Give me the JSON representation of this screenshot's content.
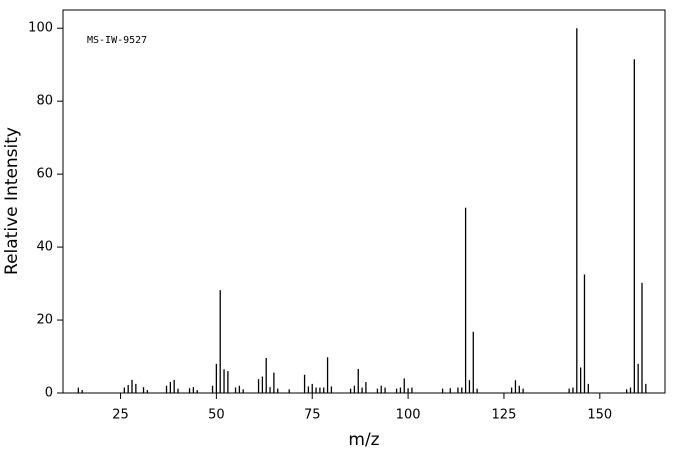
{
  "chart_data": {
    "type": "bar",
    "annotation": "MS-IW-9527",
    "x_label": "m/z",
    "y_label": "Relative Intensity",
    "x": [
      14,
      15,
      26,
      27,
      28,
      29,
      31,
      32,
      37,
      38,
      39,
      40,
      43,
      44,
      45,
      49,
      50,
      51,
      52,
      53,
      55,
      56,
      57,
      61,
      62,
      63,
      64,
      65,
      66,
      69,
      73,
      74,
      75,
      76,
      77,
      78,
      79,
      80,
      85,
      86,
      87,
      88,
      89,
      92,
      93,
      94,
      97,
      98,
      99,
      100,
      101,
      109,
      111,
      113,
      114,
      115,
      116,
      117,
      118,
      127,
      128,
      129,
      130,
      142,
      143,
      144,
      145,
      146,
      147,
      157,
      158,
      159,
      160,
      161,
      162
    ],
    "values": [
      1.5,
      0.8,
      1.5,
      2.2,
      3.6,
      2.5,
      1.6,
      0.8,
      2.0,
      3.0,
      3.6,
      1.2,
      1.3,
      1.6,
      0.8,
      2.0,
      8.0,
      28.2,
      6.5,
      6.0,
      1.5,
      2.0,
      1.0,
      3.8,
      4.5,
      9.6,
      1.6,
      5.6,
      1.2,
      1.0,
      5.0,
      1.8,
      2.5,
      1.5,
      1.5,
      1.5,
      9.8,
      1.8,
      1.2,
      2.0,
      6.6,
      1.5,
      3.0,
      1.2,
      2.0,
      1.5,
      1.2,
      1.5,
      4.0,
      1.3,
      1.5,
      1.2,
      1.3,
      1.5,
      1.5,
      50.8,
      3.5,
      16.8,
      1.2,
      1.5,
      3.5,
      2.0,
      1.2,
      1.2,
      1.5,
      100,
      7.0,
      32.5,
      2.5,
      1.0,
      1.5,
      91.5,
      8.0,
      30.2,
      2.5
    ],
    "color": "#000000",
    "xlim": [
      10,
      167
    ],
    "xticks": [
      25,
      50,
      75,
      100,
      125,
      150
    ],
    "ylim": [
      0,
      105
    ],
    "yticks": [
      0,
      20,
      40,
      60,
      80,
      100
    ]
  }
}
